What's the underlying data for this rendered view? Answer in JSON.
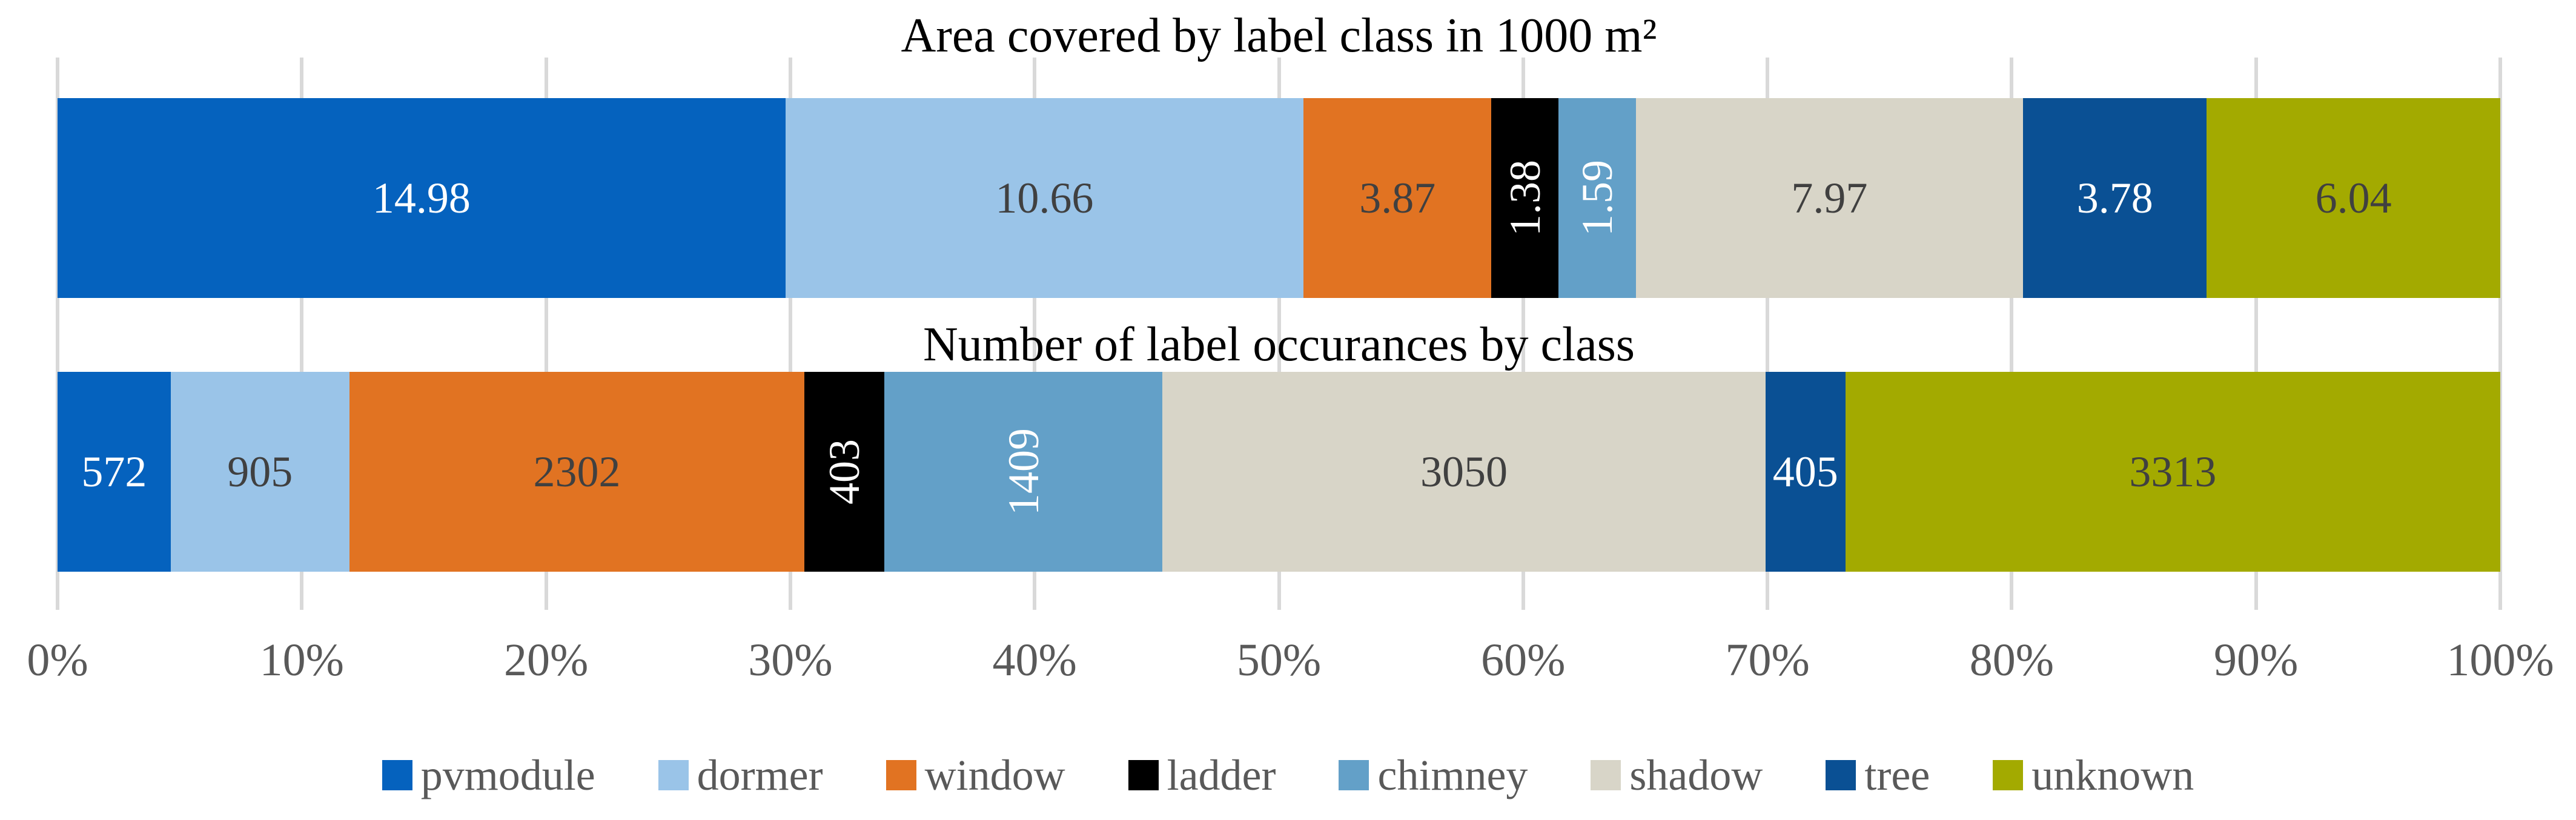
{
  "chart_data": [
    {
      "type": "bar",
      "subtype": "stacked-horizontal-100pct",
      "title": "Area covered by label class in 1000 m²",
      "categories": [
        "pvmodule",
        "dormer",
        "window",
        "ladder",
        "chimney",
        "shadow",
        "tree",
        "unknown"
      ],
      "values": [
        14.98,
        10.66,
        3.87,
        1.38,
        1.59,
        7.97,
        3.78,
        6.04
      ],
      "labels": [
        "14.98",
        "10.66",
        "3.87",
        "1.38",
        "1.59",
        "7.97",
        "3.78",
        "6.04"
      ],
      "rotated": [
        false,
        false,
        false,
        true,
        true,
        false,
        false,
        false
      ],
      "label_style": [
        "light",
        "dark",
        "dark",
        "light",
        "light",
        "dark",
        "light",
        "dark"
      ],
      "xlabel": "",
      "ylabel": "",
      "xlim_percent": [
        0,
        100
      ],
      "grid": true
    },
    {
      "type": "bar",
      "subtype": "stacked-horizontal-100pct",
      "title": "Number of label occurances by class",
      "categories": [
        "pvmodule",
        "dormer",
        "window",
        "ladder",
        "chimney",
        "shadow",
        "tree",
        "unknown"
      ],
      "values": [
        572,
        905,
        2302,
        403,
        1409,
        3050,
        405,
        3313
      ],
      "labels": [
        "572",
        "905",
        "2302",
        "403",
        "1409",
        "3050",
        "405",
        "3313"
      ],
      "rotated": [
        false,
        false,
        false,
        true,
        true,
        false,
        false,
        false
      ],
      "label_style": [
        "light",
        "dark",
        "dark",
        "light",
        "light",
        "dark",
        "light",
        "dark"
      ],
      "xlabel": "",
      "ylabel": "",
      "xlim_percent": [
        0,
        100
      ],
      "grid": true
    }
  ],
  "axis": {
    "ticks": [
      "0%",
      "10%",
      "20%",
      "30%",
      "40%",
      "50%",
      "60%",
      "70%",
      "80%",
      "90%",
      "100%"
    ]
  },
  "legend": [
    {
      "label": "pvmodule",
      "color": "#0562BE"
    },
    {
      "label": "dormer",
      "color": "#9AC4E8"
    },
    {
      "label": "window",
      "color": "#E17322"
    },
    {
      "label": "ladder",
      "color": "#000000"
    },
    {
      "label": "chimney",
      "color": "#63A0C8"
    },
    {
      "label": "shadow",
      "color": "#D8D5C8"
    },
    {
      "label": "tree",
      "color": "#0A5094"
    },
    {
      "label": "unknown",
      "color": "#A3AA00"
    }
  ],
  "style_colors": {
    "gridline": "#D9D9D9",
    "axis_text": "#595959",
    "legend_text": "#595959",
    "title_text": "#000000",
    "bar_label_light": "#FFFFFF",
    "bar_label_dark": "#404040"
  }
}
